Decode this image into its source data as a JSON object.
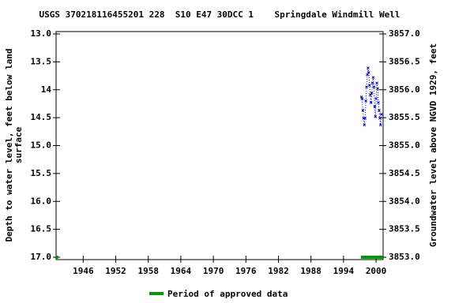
{
  "chart_data": {
    "type": "line",
    "title": "USGS 370218116455201 228  S10 E47 30DCC 1    Springdale Windmill Well",
    "y_label": [
      "Depth to water level, feet below land",
      "surface"
    ],
    "y2_label": "Groundwater level above NGVD 1929, feet",
    "xlim": [
      1941,
      2001.3
    ],
    "xticks": [
      1946,
      1952,
      1958,
      1964,
      1970,
      1976,
      1982,
      1988,
      1994,
      2000
    ],
    "ylim": [
      13,
      17
    ],
    "yticks": [
      {
        "value": 13,
        "label": "13.0"
      },
      13.5,
      14,
      14.5,
      {
        "value": 15,
        "label": "15.0"
      },
      15.5,
      {
        "value": 16,
        "label": "16.0"
      },
      16.5,
      {
        "value": 17,
        "label": "17.0"
      }
    ],
    "y2lim": [
      3857,
      3853
    ],
    "y2ticks": [
      {
        "value": 3857,
        "label": "3857.0"
      },
      3856.5,
      {
        "value": 3856,
        "label": "3856.0"
      },
      3855.5,
      {
        "value": 3855,
        "label": "3855.0"
      },
      3854.5,
      {
        "value": 3854,
        "label": "3854.0"
      },
      3853.5,
      {
        "value": 3853,
        "label": "3853.0"
      }
    ],
    "series": [
      {
        "name": "Depth to water level",
        "color": "#0000cc",
        "x": [
          1997.3,
          1997.44,
          1997.57,
          1997.71,
          1997.84,
          1997.98,
          1998.11,
          1998.25,
          1998.39,
          1998.52,
          1998.66,
          1998.79,
          1998.93,
          1999.07,
          1999.2,
          1999.34,
          1999.47,
          1999.61,
          1999.74,
          1999.88,
          2000.02,
          2000.15,
          2000.29,
          2000.42,
          2000.56,
          2000.69,
          2000.83,
          2000.97
        ],
        "values": [
          14.13,
          14.16,
          14.37,
          14.51,
          14.63,
          14.51,
          14.2,
          13.95,
          13.73,
          13.61,
          13.69,
          13.92,
          14.09,
          14.23,
          14.06,
          13.88,
          13.78,
          13.95,
          14.3,
          14.48,
          14.16,
          13.88,
          13.98,
          14.23,
          14.37,
          14.51,
          14.63,
          14.44
        ]
      }
    ],
    "approved": {
      "name": "Period of approved data",
      "color": "#009900",
      "periods": [
        [
          1941,
          1941.4
        ],
        [
          1997.2,
          2001.3
        ]
      ]
    }
  }
}
